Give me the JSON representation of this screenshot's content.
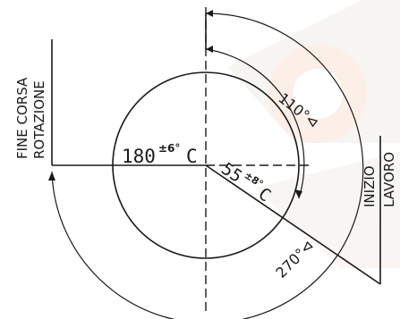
{
  "diagram": {
    "labels": {
      "fine_corsa": "FINE CORSA",
      "rotazione": "ROTAZIONE",
      "inizio": "INIZIO",
      "lavoro": "LAVORO",
      "temp_180_value": "180",
      "temp_180_tol": "±6°",
      "temp_180_unit": "C",
      "temp_55_value": "55",
      "temp_55_tol": "±8°",
      "temp_55_unit": "C",
      "angle_110": "110°",
      "angle_270": "270°"
    },
    "colors": {
      "ink": "#1a1a1a",
      "watermark": "#f6e2d8",
      "background": "#ffffff"
    },
    "watermark": "logo-watermark"
  }
}
